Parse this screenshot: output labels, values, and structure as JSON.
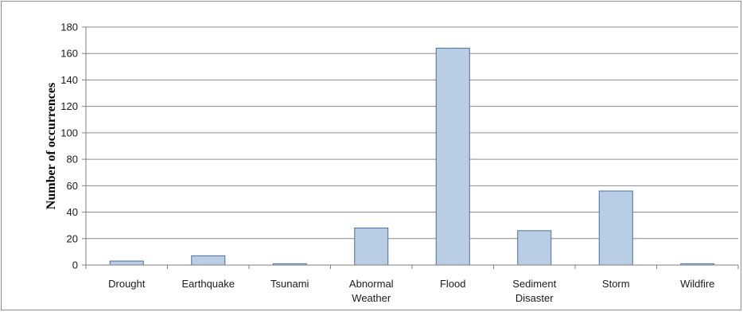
{
  "chart_data": {
    "type": "bar",
    "categories": [
      [
        "Drought"
      ],
      [
        "Earthquake"
      ],
      [
        "Tsunami"
      ],
      [
        "Abnormal",
        "Weather"
      ],
      [
        "Flood"
      ],
      [
        "Sediment",
        "Disaster"
      ],
      [
        "Storm"
      ],
      [
        "Wildfire"
      ]
    ],
    "values": [
      3,
      7,
      1,
      28,
      164,
      26,
      56,
      1
    ],
    "xlabel": "",
    "ylabel": "Number of occurrences",
    "ylim": [
      0,
      180
    ],
    "yticks": [
      0,
      20,
      40,
      60,
      80,
      100,
      120,
      140,
      160,
      180
    ],
    "grid": true,
    "legend": "none",
    "colors": {
      "bar_fill": "#b9cde5",
      "bar_stroke": "#4a6f9c",
      "grid": "#8c8c8c",
      "axis": "#7f7f7f"
    }
  }
}
